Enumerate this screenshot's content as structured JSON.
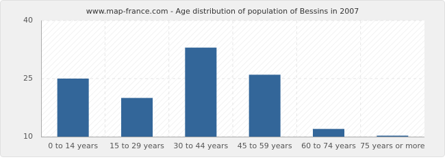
{
  "chart_data": {
    "type": "bar",
    "title": "www.map-france.com - Age distribution of population of Bessins in 2007",
    "categories": [
      "0 to 14 years",
      "15 to 29 years",
      "30 to 44 years",
      "45 to 59 years",
      "60 to 74 years",
      "75 years or more"
    ],
    "values": [
      25,
      20,
      33,
      26,
      12,
      10
    ],
    "color": "#336699",
    "ylim": [
      10,
      40
    ],
    "yticks": [
      10,
      25,
      40
    ],
    "grid": true
  }
}
